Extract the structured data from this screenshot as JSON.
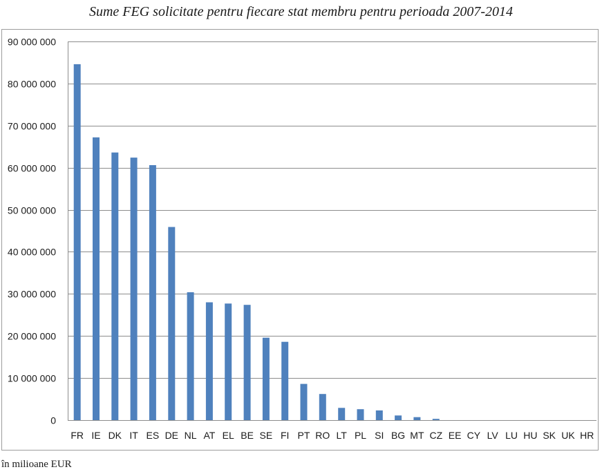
{
  "chart_data": {
    "type": "bar",
    "title": "Sume FEG solicitate pentru fiecare stat membru pentru perioada 2007-2014",
    "xlabel": "",
    "ylabel": "",
    "ylim": [
      0,
      90000000
    ],
    "yticks": [
      0,
      10000000,
      20000000,
      30000000,
      40000000,
      50000000,
      60000000,
      70000000,
      80000000,
      90000000
    ],
    "ytick_labels": [
      "0",
      "10 000 000",
      "20 000 000",
      "30 000 000",
      "40 000 000",
      "50 000 000",
      "60 000 000",
      "70 000 000",
      "80 000 000",
      "90 000 000"
    ],
    "grid": true,
    "legend": "none",
    "bar_color": "#4f81bd",
    "categories": [
      "FR",
      "IE",
      "DK",
      "IT",
      "ES",
      "DE",
      "NL",
      "AT",
      "EL",
      "BE",
      "SE",
      "FI",
      "PT",
      "RO",
      "LT",
      "PL",
      "SI",
      "BG",
      "MT",
      "CZ",
      "EE",
      "CY",
      "LV",
      "LU",
      "HU",
      "SK",
      "UK",
      "HR"
    ],
    "values": [
      84600000,
      67200000,
      63600000,
      62400000,
      60600000,
      45900000,
      30400000,
      28000000,
      27700000,
      27400000,
      19600000,
      18600000,
      8600000,
      6200000,
      2900000,
      2600000,
      2300000,
      1100000,
      700000,
      300000,
      0,
      0,
      0,
      0,
      0,
      0,
      0,
      0
    ]
  },
  "note": "în milioane EUR"
}
